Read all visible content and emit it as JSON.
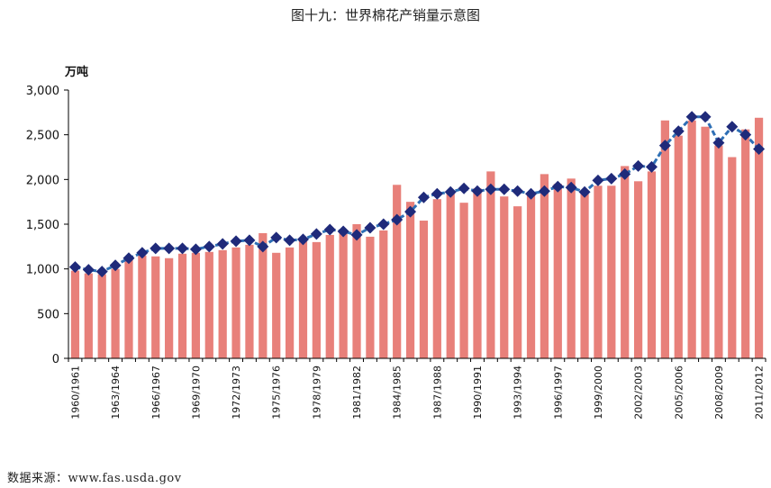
{
  "title": "图十九：世界棉花产销量示意图",
  "source": "数据来源：www.fas.usda.gov",
  "chart_data": {
    "type": "bar+line",
    "title": "图十九：世界棉花产销量示意图",
    "ylabel": "万吨",
    "ylim": [
      0,
      3000
    ],
    "yticks": [
      "0",
      "500",
      "1,000",
      "1,500",
      "2,000",
      "2,500",
      "3,000"
    ],
    "yticks_values": [
      0,
      500,
      1000,
      1500,
      2000,
      2500,
      3000
    ],
    "grid": false,
    "categories": [
      "1960/1961",
      "1961/1962",
      "1962/1963",
      "1963/1964",
      "1964/1965",
      "1965/1966",
      "1966/1967",
      "1967/1968",
      "1968/1969",
      "1969/1970",
      "1970/1971",
      "1971/1972",
      "1972/1973",
      "1973/1974",
      "1974/1975",
      "1975/1976",
      "1976/1977",
      "1977/1978",
      "1978/1979",
      "1979/1980",
      "1980/1981",
      "1981/1982",
      "1982/1983",
      "1983/1984",
      "1984/1985",
      "1985/1986",
      "1986/1987",
      "1987/1988",
      "1988/1989",
      "1989/1990",
      "1990/1991",
      "1991/1992",
      "1992/1993",
      "1993/1994",
      "1994/1995",
      "1995/1996",
      "1996/1997",
      "1997/1998",
      "1998/1999",
      "1999/2000",
      "2000/2001",
      "2001/2002",
      "2002/2003",
      "2003/2004",
      "2004/2005",
      "2005/2006",
      "2006/2007",
      "2007/2008",
      "2008/2009",
      "2009/2010",
      "2010/2011",
      "2011/2012"
    ],
    "xtick_labels": [
      "1960/1961",
      "",
      "",
      "1963/1964",
      "",
      "",
      "1966/1967",
      "",
      "",
      "1969/1970",
      "",
      "",
      "1972/1973",
      "",
      "",
      "1975/1976",
      "",
      "",
      "1978/1979",
      "",
      "",
      "1981/1982",
      "",
      "",
      "1984/1985",
      "",
      "",
      "1987/1988",
      "",
      "",
      "1990/1991",
      "",
      "",
      "1993/1994",
      "",
      "",
      "1996/1997",
      "",
      "",
      "1999/2000",
      "",
      "",
      "2002/2003",
      "",
      "",
      "2005/2006",
      "",
      "",
      "2008/2009",
      "",
      "",
      "2011/2012"
    ],
    "series": [
      {
        "kind": "bar",
        "color": "#e8807a",
        "values": [
          980,
          950,
          940,
          1000,
          1100,
          1150,
          1140,
          1120,
          1170,
          1180,
          1190,
          1210,
          1240,
          1270,
          1400,
          1180,
          1240,
          1310,
          1300,
          1380,
          1410,
          1500,
          1360,
          1430,
          1940,
          1750,
          1540,
          1780,
          1840,
          1740,
          1900,
          2090,
          1810,
          1700,
          1850,
          2060,
          1950,
          2010,
          1850,
          1930,
          1930,
          2150,
          1980,
          2090,
          2660,
          2490,
          2660,
          2590,
          2380,
          2250,
          2560,
          2690
        ]
      },
      {
        "kind": "line",
        "color": "#1f2a7a",
        "line_color": "#2e6fb5",
        "values": [
          1020,
          990,
          970,
          1040,
          1120,
          1180,
          1230,
          1230,
          1230,
          1220,
          1250,
          1280,
          1310,
          1320,
          1250,
          1350,
          1320,
          1330,
          1390,
          1440,
          1420,
          1380,
          1460,
          1500,
          1550,
          1640,
          1800,
          1840,
          1860,
          1900,
          1870,
          1890,
          1890,
          1870,
          1840,
          1870,
          1920,
          1910,
          1860,
          1990,
          2010,
          2060,
          2150,
          2140,
          2380,
          2540,
          2700,
          2700,
          2410,
          2590,
          2500,
          2340
        ]
      }
    ]
  }
}
